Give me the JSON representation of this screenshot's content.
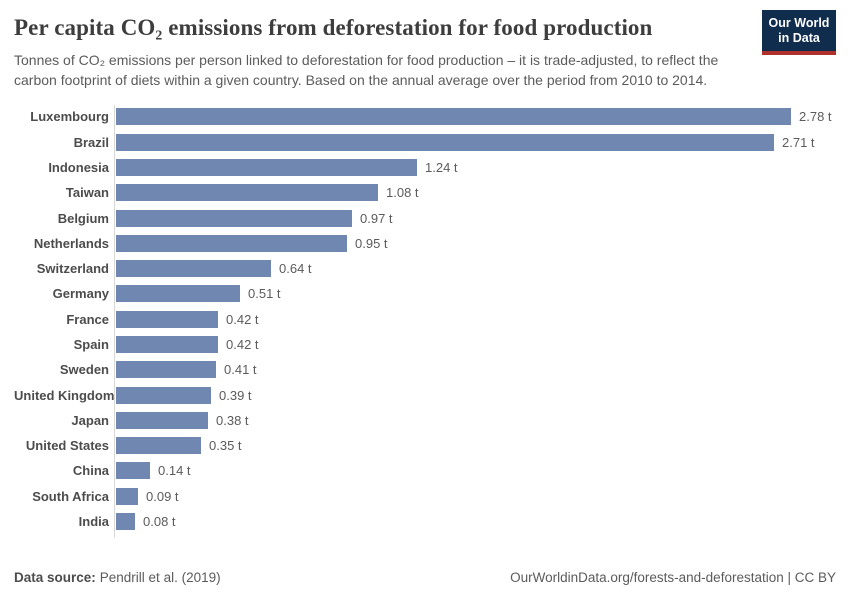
{
  "header": {
    "title": "Per capita CO₂ emissions from deforestation for food production",
    "subtitle": "Tonnes of CO₂ emissions per person linked to deforestation for food production – it is trade-adjusted, to reflect the carbon footprint of diets within a given country. Based on the annual average over the period from 2010 to 2014.",
    "logo_line1": "Our World",
    "logo_line2": "in Data"
  },
  "chart_data": {
    "type": "bar",
    "orientation": "horizontal",
    "title": "Per capita CO₂ emissions from deforestation for food production",
    "categories": [
      "Luxembourg",
      "Brazil",
      "Indonesia",
      "Taiwan",
      "Belgium",
      "Netherlands",
      "Switzerland",
      "Germany",
      "France",
      "Spain",
      "Sweden",
      "United Kingdom",
      "Japan",
      "United States",
      "China",
      "South Africa",
      "India"
    ],
    "values": [
      2.78,
      2.71,
      1.24,
      1.08,
      0.97,
      0.95,
      0.64,
      0.51,
      0.42,
      0.42,
      0.41,
      0.39,
      0.38,
      0.35,
      0.14,
      0.09,
      0.08
    ],
    "value_labels": [
      "2.78 t",
      "2.71 t",
      "1.24 t",
      "1.08 t",
      "0.97 t",
      "0.95 t",
      "0.64 t",
      "0.51 t",
      "0.42 t",
      "0.42 t",
      "0.41 t",
      "0.39 t",
      "0.38 t",
      "0.35 t",
      "0.14 t",
      "0.09 t",
      "0.08 t"
    ],
    "unit": "t",
    "xlim": [
      0,
      2.78
    ],
    "grid": false,
    "legend": "none",
    "bar_color": "#7088b1",
    "axis_color": "#d9d9d9"
  },
  "footer": {
    "data_source_label": "Data source:",
    "data_source_value": "Pendrill et al. (2019)",
    "attribution": "OurWorldinData.org/forests-and-deforestation | CC BY"
  },
  "colors": {
    "bar": "#7088b1",
    "logo_navy": "#102d4e",
    "logo_red": "#b0302c",
    "title_text": "#3d3d3d",
    "body_text": "#5b5b5b"
  }
}
